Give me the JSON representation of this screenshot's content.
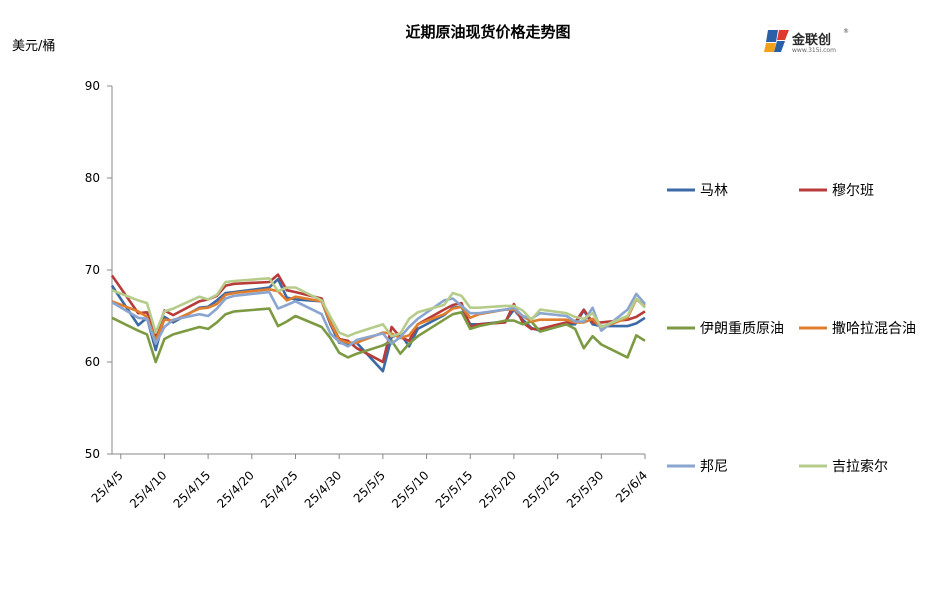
{
  "chart_data": {
    "type": "line",
    "title": "近期原油现货价格走势图",
    "unit_label": "美元/桶",
    "ylim": [
      50,
      90
    ],
    "yticks": [
      50,
      60,
      70,
      80,
      90
    ],
    "x_tick_labels": [
      "25/4/5",
      "25/4/10",
      "25/4/15",
      "25/4/20",
      "25/4/25",
      "25/4/30",
      "25/5/5",
      "25/5/10",
      "25/5/15",
      "25/5/20",
      "25/5/25",
      "25/5/30",
      "25/6/4"
    ],
    "legend_position": "right",
    "x": [
      "25/4/4",
      "25/4/7",
      "25/4/8",
      "25/4/9",
      "25/4/10",
      "25/4/11",
      "25/4/14",
      "25/4/15",
      "25/4/16",
      "25/4/17",
      "25/4/18",
      "25/4/22",
      "25/4/23",
      "25/4/24",
      "25/4/25",
      "25/4/28",
      "25/4/29",
      "25/4/30",
      "25/5/1",
      "25/5/2",
      "25/5/5",
      "25/5/6",
      "25/5/7",
      "25/5/8",
      "25/5/9",
      "25/5/12",
      "25/5/13",
      "25/5/14",
      "25/5/15",
      "25/5/16",
      "25/5/19",
      "25/5/20",
      "25/5/21",
      "25/5/22",
      "25/5/23",
      "25/5/26",
      "25/5/27",
      "25/5/28",
      "25/5/29",
      "25/5/30",
      "25/6/2",
      "25/6/3",
      "25/6/4"
    ],
    "series": [
      {
        "name": "马林",
        "color": "#3c6aa6",
        "values": [
          68.3,
          64.0,
          64.8,
          61.3,
          64.9,
          64.3,
          65.9,
          66.0,
          66.7,
          67.5,
          67.6,
          68.1,
          69.0,
          67.0,
          66.8,
          66.6,
          64.1,
          62.1,
          61.9,
          62.1,
          59.0,
          62.7,
          63.1,
          61.7,
          63.6,
          65.1,
          65.9,
          66.0,
          64.1,
          64.1,
          64.4,
          65.7,
          64.6,
          63.7,
          63.4,
          64.1,
          64.1,
          65.6,
          64.1,
          63.9,
          63.9,
          64.2,
          64.8
        ]
      },
      {
        "name": "穆尔班",
        "color": "#b73c3a",
        "values": [
          69.4,
          65.3,
          65.4,
          62.8,
          65.6,
          65.1,
          66.6,
          66.8,
          67.2,
          68.3,
          68.5,
          68.7,
          69.5,
          67.8,
          67.6,
          66.9,
          64.3,
          62.5,
          62.3,
          61.5,
          60.0,
          63.8,
          62.7,
          62.3,
          64.1,
          65.7,
          66.2,
          66.4,
          63.8,
          64.1,
          64.3,
          66.3,
          64.3,
          63.6,
          63.6,
          64.3,
          64.3,
          65.7,
          64.3,
          64.3,
          64.6,
          64.9,
          65.5
        ]
      },
      {
        "name": "伊朗重质原油",
        "color": "#7b9a42",
        "values": [
          64.8,
          63.4,
          63.0,
          60.0,
          62.5,
          63.0,
          63.8,
          63.6,
          64.3,
          65.2,
          65.5,
          65.8,
          63.9,
          64.4,
          65.0,
          63.8,
          62.6,
          61.0,
          60.5,
          60.9,
          61.8,
          62.3,
          60.9,
          62.0,
          62.8,
          64.6,
          65.2,
          65.4,
          63.6,
          63.9,
          64.5,
          64.5,
          64.1,
          64.4,
          63.3,
          64.1,
          63.6,
          61.5,
          62.8,
          61.9,
          60.5,
          62.9,
          62.3
        ]
      },
      {
        "name": "撒哈拉混合油",
        "color": "#e07e2d",
        "values": [
          66.6,
          65.5,
          64.9,
          62.3,
          64.6,
          64.5,
          65.8,
          65.9,
          66.3,
          67.3,
          67.5,
          67.9,
          67.7,
          66.7,
          67.1,
          66.6,
          64.3,
          62.4,
          62.1,
          62.1,
          63.2,
          63.1,
          62.6,
          62.9,
          64.1,
          65.2,
          65.8,
          66.0,
          64.8,
          65.2,
          65.7,
          65.7,
          65.0,
          64.4,
          64.6,
          64.6,
          64.3,
          64.3,
          64.7,
          63.7,
          64.8,
          66.8,
          66.1
        ]
      },
      {
        "name": "邦尼",
        "color": "#8aa5cf",
        "values": [
          66.5,
          64.8,
          64.7,
          62.0,
          63.8,
          64.6,
          65.2,
          65.0,
          65.8,
          66.9,
          67.2,
          67.6,
          65.8,
          66.2,
          66.6,
          65.2,
          63.1,
          62.2,
          61.7,
          62.4,
          63.1,
          62.0,
          62.7,
          63.8,
          64.7,
          66.7,
          66.9,
          66.1,
          65.3,
          65.3,
          65.7,
          65.9,
          65.0,
          64.7,
          65.3,
          65.0,
          64.4,
          64.4,
          65.9,
          63.4,
          65.7,
          67.4,
          66.3
        ]
      },
      {
        "name": "吉拉索尔",
        "color": "#b6cc8b",
        "values": [
          67.8,
          66.7,
          66.4,
          63.2,
          65.5,
          65.8,
          67.1,
          66.8,
          67.3,
          68.7,
          68.8,
          69.1,
          67.7,
          68.1,
          68.1,
          66.7,
          64.9,
          63.2,
          62.8,
          63.2,
          64.1,
          62.8,
          63.1,
          64.7,
          65.4,
          66.2,
          67.5,
          67.2,
          65.9,
          65.9,
          66.1,
          66.1,
          65.6,
          64.6,
          65.7,
          65.3,
          64.9,
          64.7,
          65.3,
          63.8,
          65.0,
          66.9,
          65.9
        ]
      }
    ]
  },
  "brand": {
    "logo_text": "金联创",
    "logo_sub": "www.315i.com"
  }
}
